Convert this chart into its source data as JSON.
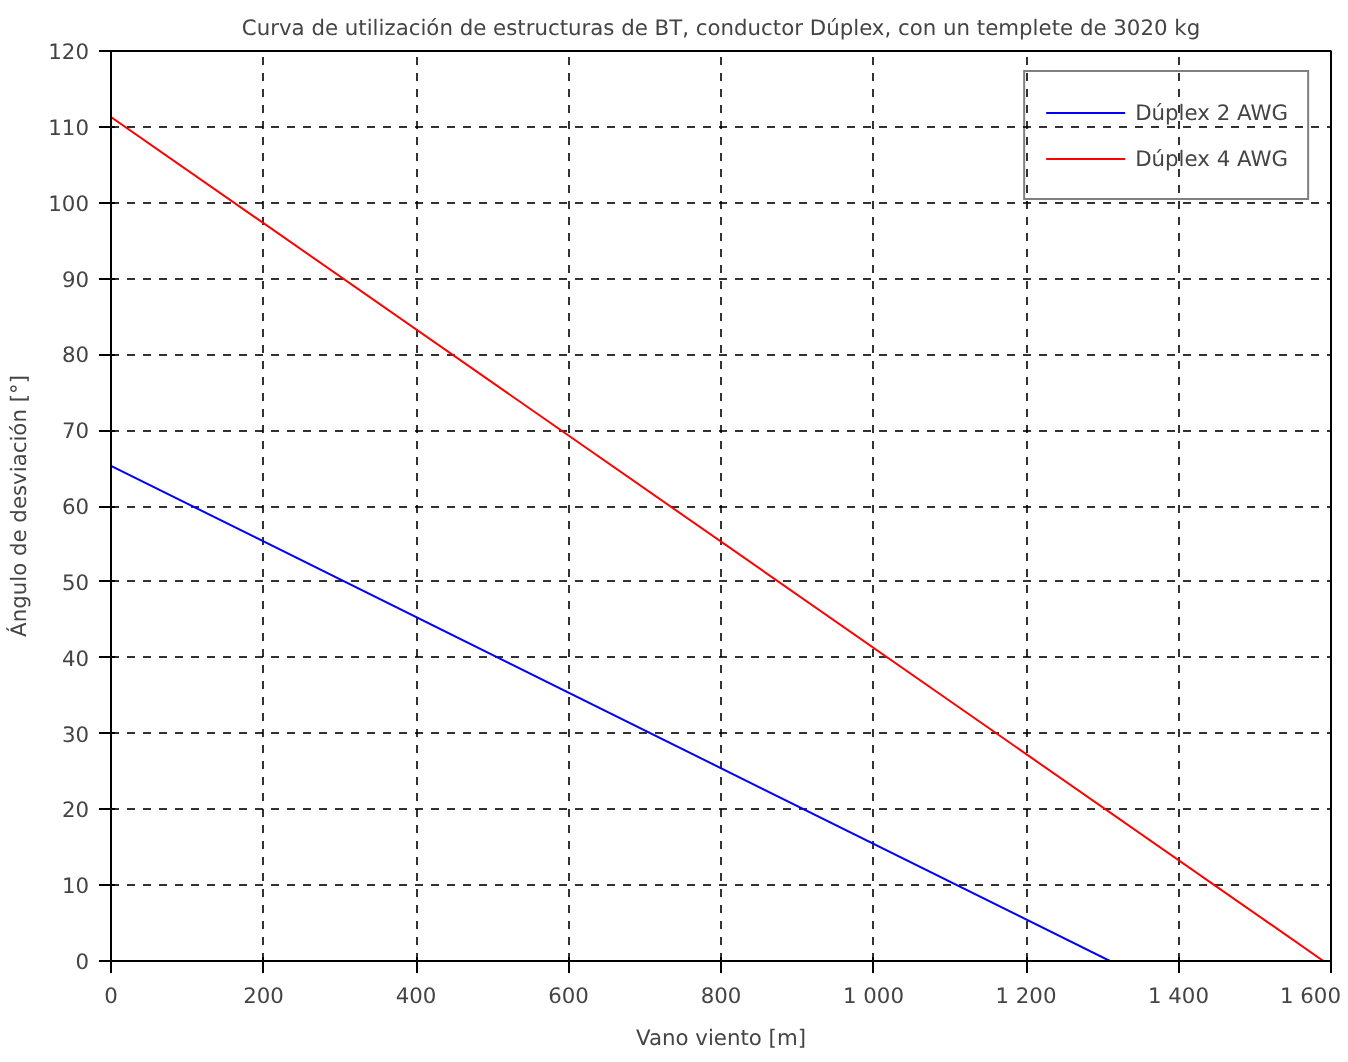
{
  "chart_data": {
    "type": "line",
    "title": "Curva de utilización de estructuras de BT, conductor Dúplex, con un templete de 3020 kg",
    "xlabel": "Vano viento [m]",
    "ylabel": "Ángulo de desviación [°]",
    "xlim": [
      0,
      1600
    ],
    "ylim": [
      0,
      120
    ],
    "xticks": [
      0,
      200,
      400,
      600,
      800,
      {
        "value": 1000,
        "label": "1 000"
      },
      {
        "value": 1200,
        "label": "1 200"
      },
      {
        "value": 1400,
        "label": "1 400"
      },
      {
        "value": 1600,
        "label": "1 600"
      }
    ],
    "yticks": [
      0,
      10,
      20,
      30,
      40,
      50,
      60,
      70,
      80,
      90,
      100,
      110,
      120
    ],
    "grid": true,
    "legend": "top right",
    "marker": "none",
    "line_style": "solid",
    "series": [
      {
        "name": "Dúplex 2 AWG",
        "color": "#0000ff",
        "x": [
          0,
          1310
        ],
        "values": [
          65.3,
          0
        ]
      },
      {
        "name": "Dúplex 4 AWG",
        "color": "#ff0000",
        "x": [
          0,
          1590
        ],
        "values": [
          111.3,
          0
        ]
      }
    ]
  }
}
